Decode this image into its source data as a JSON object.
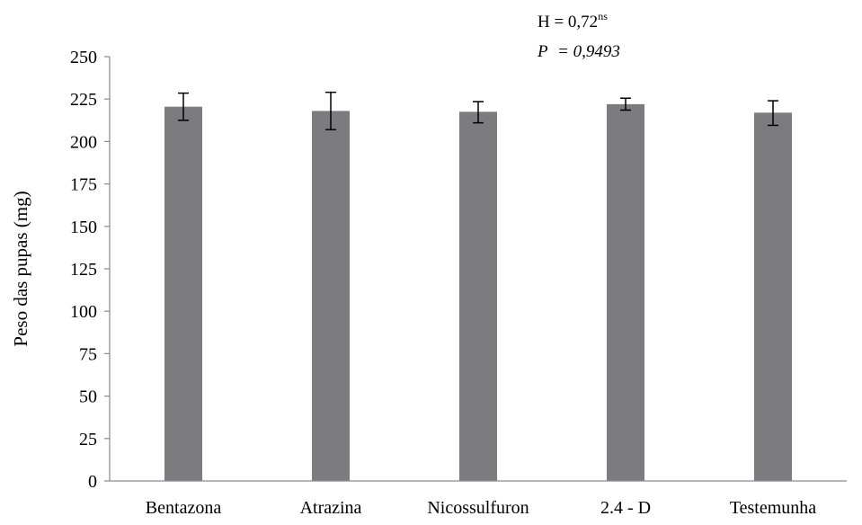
{
  "chart_data": {
    "type": "bar",
    "title": "",
    "xlabel": "",
    "ylabel": "Peso das pupas  (mg)",
    "ylim": [
      0,
      250
    ],
    "yticks": [
      0,
      25,
      50,
      75,
      100,
      125,
      150,
      175,
      200,
      225,
      250
    ],
    "grid": false,
    "legend": "none",
    "bar_color": "#7c7c7e",
    "categories": [
      "Bentazona",
      "Atrazina",
      "Nicossulfuron",
      "2.4 - D",
      "Testemunha"
    ],
    "values": [
      220.5,
      218,
      217.5,
      222,
      217
    ],
    "error_low": [
      212.5,
      207,
      211,
      218.5,
      209.5
    ],
    "error_high": [
      228.5,
      229,
      223.5,
      225.5,
      224
    ],
    "annotation": {
      "h_prefix": "H = 0,72",
      "h_sup": "ns",
      "p_label": "P",
      "p_value": "= 0,9493"
    }
  }
}
